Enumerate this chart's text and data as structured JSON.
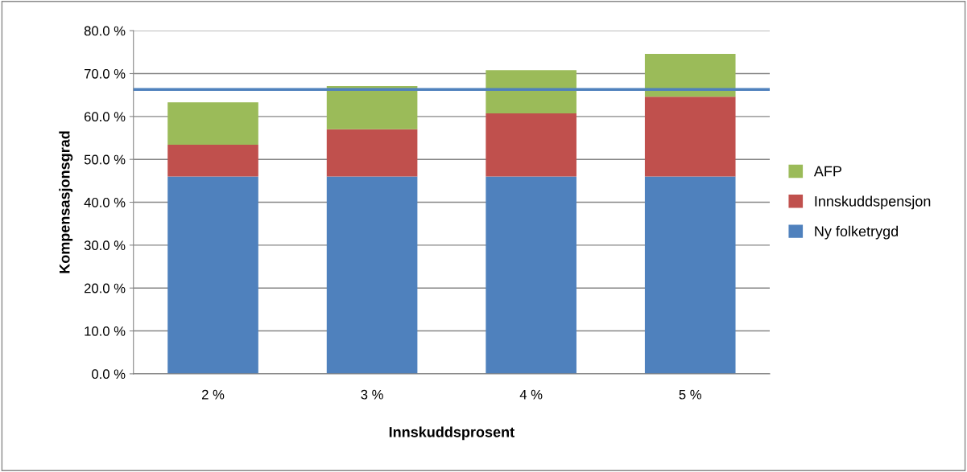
{
  "chart_data": {
    "type": "bar",
    "stacked": true,
    "xlabel": "Innskuddsprosent",
    "ylabel": "Kompensasjonsgrad",
    "categories": [
      "2 %",
      "3 %",
      "4 %",
      "5 %"
    ],
    "series": [
      {
        "name": "Ny folketrygd",
        "color": "#4f81bd",
        "values": [
          46.0,
          46.0,
          46.0,
          46.0
        ]
      },
      {
        "name": "Innskuddspensjon",
        "color": "#c0504d",
        "values": [
          7.4,
          11.0,
          14.7,
          18.6
        ]
      },
      {
        "name": "AFP",
        "color": "#9bbb59",
        "values": [
          9.9,
          10.1,
          10.1,
          10.0
        ]
      }
    ],
    "ylim": [
      0,
      80
    ],
    "yticks": [
      {
        "value": 0,
        "label": "0.0 %"
      },
      {
        "value": 10,
        "label": "10.0 %"
      },
      {
        "value": 20,
        "label": "20.0 %"
      },
      {
        "value": 30,
        "label": "30.0 %"
      },
      {
        "value": 40,
        "label": "40.0 %"
      },
      {
        "value": 50,
        "label": "50.0 %"
      },
      {
        "value": 60,
        "label": "60.0 %"
      },
      {
        "value": 70,
        "label": "70.0 %"
      },
      {
        "value": 80,
        "label": "80.0 %"
      }
    ],
    "ref_lines": [
      {
        "axis": "y",
        "value": 66.3,
        "color": "#4f81bd",
        "line_style": "solid"
      }
    ],
    "grid": "y",
    "legend": "right"
  }
}
